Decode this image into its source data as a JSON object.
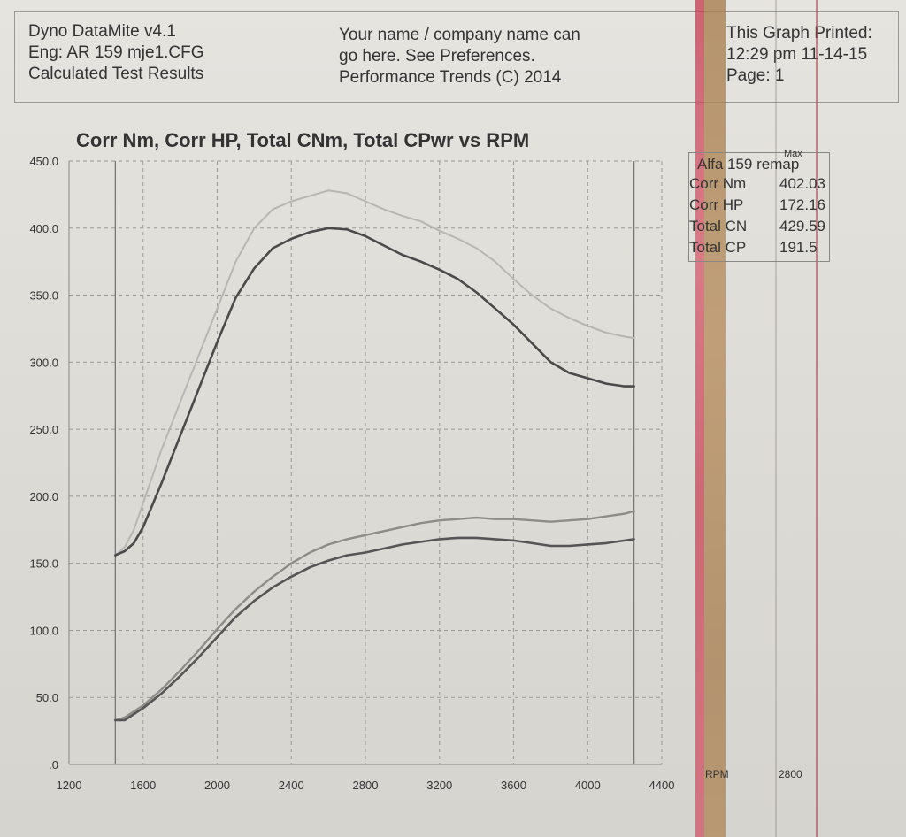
{
  "header": {
    "left": [
      "Dyno DataMite v4.1",
      "Eng: AR 159 mje1.CFG",
      "Calculated Test Results"
    ],
    "center": [
      "Your name / company name can",
      "go here.  See Preferences.",
      "Performance Trends (C) 2014"
    ],
    "right": [
      "This Graph Printed:",
      "12:29 pm 11-14-15",
      "Page: 1"
    ]
  },
  "legend": {
    "title": "Alfa 159 remap",
    "max_label": "Max",
    "rows": [
      {
        "name": "Corr Nm",
        "value": "402.03"
      },
      {
        "name": "Corr HP",
        "value": "172.16"
      },
      {
        "name": "Total CN",
        "value": "429.59"
      },
      {
        "name": "Total CP",
        "value": "191.5"
      }
    ]
  },
  "right_axis": {
    "label": "RPM",
    "tick": "2800"
  },
  "colors": {
    "corr_nm": "#4a4a4a",
    "corr_hp": "#555555",
    "total_cnm": "#b8b6b2",
    "total_cpwr": "#8e8c88",
    "grid": "#9a9894",
    "stripe_red": "#c84454",
    "stripe_brown": "#a98256"
  },
  "chart_data": {
    "type": "line",
    "title": "Corr Nm, Corr HP, Total CNm, Total CPwr vs RPM",
    "xlabel": "",
    "ylabel": "",
    "xlim": [
      1200,
      4400
    ],
    "ylim": [
      0,
      450
    ],
    "x_ticks": [
      "1200",
      "1600",
      "2000",
      "2400",
      "2800",
      "3200",
      "3600",
      "4000",
      "4400"
    ],
    "y_ticks": [
      ".0",
      "50.0",
      "100.0",
      "150.0",
      "200.0",
      "250.0",
      "300.0",
      "350.0",
      "400.0",
      "450.0"
    ],
    "grid": true,
    "series": [
      {
        "name": "Total CNm",
        "x": [
          1450,
          1500,
          1550,
          1600,
          1700,
          1800,
          1900,
          2000,
          2100,
          2200,
          2300,
          2400,
          2500,
          2600,
          2700,
          2800,
          2900,
          3000,
          3100,
          3200,
          3300,
          3400,
          3500,
          3600,
          3700,
          3800,
          3900,
          4000,
          4100,
          4200,
          4250
        ],
        "y": [
          156,
          162,
          175,
          195,
          235,
          270,
          305,
          340,
          375,
          400,
          414,
          420,
          424,
          428,
          426,
          420,
          414,
          409,
          405,
          398,
          392,
          385,
          375,
          362,
          350,
          340,
          333,
          327,
          322,
          319,
          318
        ]
      },
      {
        "name": "Corr Nm",
        "x": [
          1450,
          1500,
          1550,
          1600,
          1700,
          1800,
          1900,
          2000,
          2100,
          2200,
          2300,
          2400,
          2500,
          2600,
          2700,
          2800,
          2900,
          3000,
          3100,
          3200,
          3300,
          3400,
          3500,
          3600,
          3700,
          3800,
          3900,
          4000,
          4100,
          4200,
          4250
        ],
        "y": [
          156,
          159,
          165,
          177,
          210,
          245,
          280,
          315,
          348,
          370,
          385,
          392,
          397,
          400,
          399,
          394,
          387,
          380,
          375,
          369,
          362,
          352,
          340,
          328,
          314,
          300,
          292,
          288,
          284,
          282,
          282
        ]
      },
      {
        "name": "Total CPwr",
        "x": [
          1450,
          1500,
          1600,
          1700,
          1800,
          1900,
          2000,
          2100,
          2200,
          2300,
          2400,
          2500,
          2600,
          2700,
          2800,
          2900,
          3000,
          3100,
          3200,
          3300,
          3400,
          3500,
          3600,
          3700,
          3800,
          3900,
          4000,
          4100,
          4200,
          4250
        ],
        "y": [
          33,
          35,
          44,
          56,
          70,
          85,
          101,
          116,
          129,
          140,
          150,
          158,
          164,
          168,
          171,
          174,
          177,
          180,
          182,
          183,
          184,
          183,
          183,
          182,
          181,
          182,
          183,
          185,
          187,
          189
        ]
      },
      {
        "name": "Corr HP",
        "x": [
          1450,
          1500,
          1600,
          1700,
          1800,
          1900,
          2000,
          2100,
          2200,
          2300,
          2400,
          2500,
          2600,
          2700,
          2800,
          2900,
          3000,
          3100,
          3200,
          3300,
          3400,
          3500,
          3600,
          3700,
          3800,
          3900,
          4000,
          4100,
          4200,
          4250
        ],
        "y": [
          33,
          33,
          42,
          53,
          66,
          80,
          95,
          110,
          122,
          132,
          140,
          147,
          152,
          156,
          158,
          161,
          164,
          166,
          168,
          169,
          169,
          168,
          167,
          165,
          163,
          163,
          164,
          165,
          167,
          168
        ]
      }
    ]
  }
}
